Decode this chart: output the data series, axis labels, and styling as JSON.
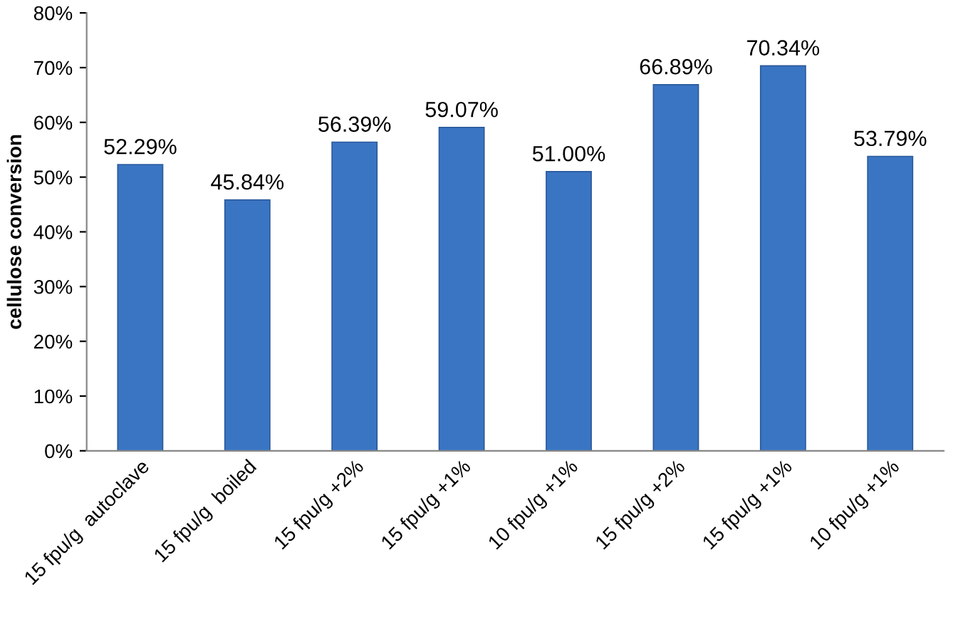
{
  "chart_data": {
    "type": "bar",
    "ylabel": "cellulose conversion",
    "categories": [
      "15 fpu/g  autoclave",
      "15 fpu/g  boiled",
      "15 fpu/g +2%",
      "15 fpu/g +1%",
      "10 fpu/g +1%",
      "15 fpu/g +2%",
      "15 fpu/g +1%",
      "10 fpu/g +1%"
    ],
    "values": [
      52.29,
      45.84,
      56.39,
      59.07,
      51.0,
      66.89,
      70.34,
      53.79
    ],
    "value_labels": [
      "52.29%",
      "45.84%",
      "56.39%",
      "59.07%",
      "51.00%",
      "66.89%",
      "70.34%",
      "53.79%"
    ],
    "color": "#3a75c4",
    "ylim": [
      0,
      80
    ],
    "yticks": [
      {
        "value": 0,
        "label": "0%"
      },
      {
        "value": 10,
        "label": "10%"
      },
      {
        "value": 20,
        "label": "20%"
      },
      {
        "value": 30,
        "label": "30%"
      },
      {
        "value": 40,
        "label": "40%"
      },
      {
        "value": 50,
        "label": "50%"
      },
      {
        "value": 60,
        "label": "60%"
      },
      {
        "value": 70,
        "label": "70%"
      },
      {
        "value": 80,
        "label": "80%"
      }
    ],
    "grid": false
  }
}
